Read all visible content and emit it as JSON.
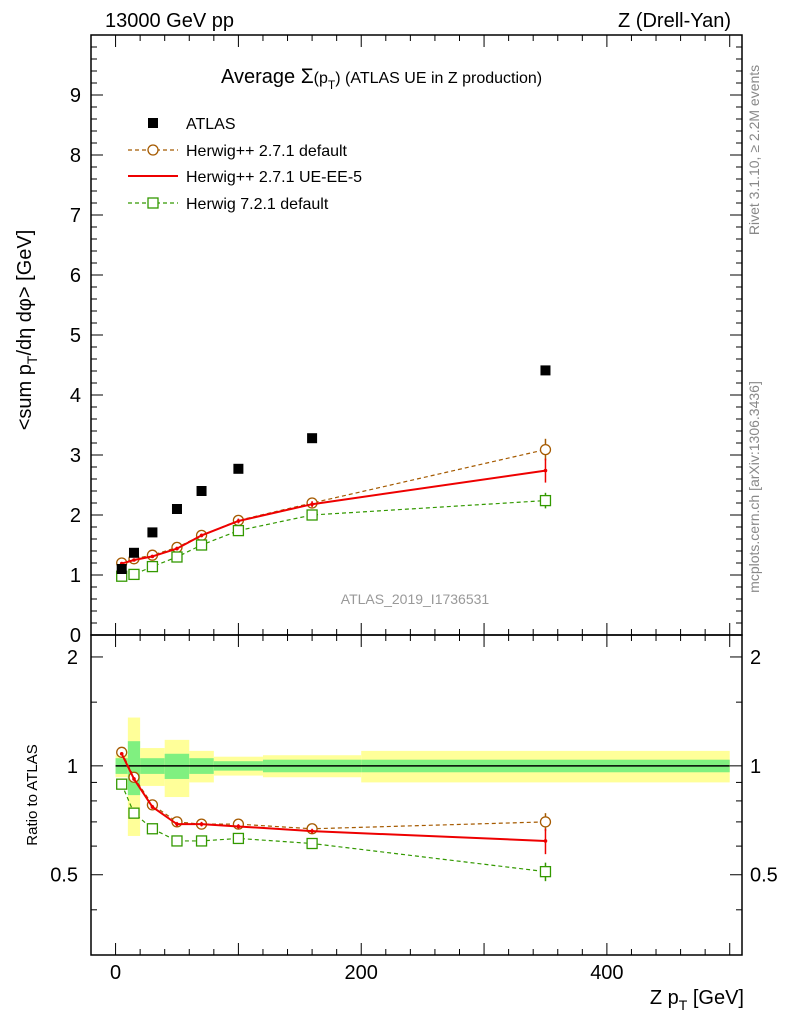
{
  "header": {
    "left": "13000 GeV pp",
    "right": "Z (Drell-Yan)"
  },
  "side_labels": {
    "rivet": "Rivet 3.1.10, ≥ 2.2M events",
    "mcplots": "mcplots.cern.ch [arXiv:1306.3436]"
  },
  "chart_data": [
    {
      "type": "scatter",
      "panel": "main",
      "title": "Average Σ(p_T) (ATLAS UE in Z production)",
      "watermark": "ATLAS_2019_I1736531",
      "xlabel": "Z p_T [GeV]",
      "ylabel": "<sum p_T/dη dφ> [GeV]",
      "xlim": [
        -20,
        510
      ],
      "ylim": [
        0,
        10
      ],
      "yticks": [
        0,
        1,
        2,
        3,
        4,
        5,
        6,
        7,
        8,
        9
      ],
      "legend_position": "top-left",
      "x": [
        5,
        15,
        30,
        50,
        70,
        100,
        160,
        350
      ],
      "series": [
        {
          "name": "ATLAS",
          "color": "#000000",
          "style": "filled-square",
          "values": [
            1.1,
            1.37,
            1.71,
            2.1,
            2.4,
            2.77,
            3.28,
            4.41
          ]
        },
        {
          "name": "Herwig++ 2.7.1 default",
          "color": "#a55a00",
          "style": "dashed-circle",
          "values": [
            1.2,
            1.27,
            1.33,
            1.46,
            1.66,
            1.91,
            2.2,
            3.09
          ],
          "errors": [
            0.02,
            0.02,
            0.02,
            0.03,
            0.03,
            0.04,
            0.05,
            0.18
          ]
        },
        {
          "name": "Herwig++ 2.7.1 UE-EE-5",
          "color": "#ee0000",
          "style": "solid-line",
          "values": [
            1.19,
            1.25,
            1.31,
            1.44,
            1.66,
            1.9,
            2.18,
            2.74
          ],
          "errors": [
            0.02,
            0.02,
            0.02,
            0.03,
            0.03,
            0.04,
            0.05,
            0.2
          ]
        },
        {
          "name": "Herwig 7.2.1 default",
          "color": "#339900",
          "style": "dashed-square",
          "values": [
            0.98,
            1.01,
            1.14,
            1.3,
            1.5,
            1.74,
            2.0,
            2.24
          ],
          "errors": [
            0.02,
            0.02,
            0.02,
            0.03,
            0.03,
            0.04,
            0.05,
            0.13
          ]
        }
      ]
    },
    {
      "type": "scatter",
      "panel": "ratio",
      "ylabel": "Ratio to ATLAS",
      "xlabel": "Z p_T [GeV]",
      "xlim": [
        -20,
        510
      ],
      "ylim": [
        0.3,
        2.3
      ],
      "xticks": [
        0,
        200,
        400
      ],
      "yticks": [
        0.5,
        1,
        2
      ],
      "bands": [
        {
          "x0": 0,
          "x1": 10,
          "stat": 0.05,
          "total": 0.07
        },
        {
          "x0": 10,
          "x1": 20,
          "stat": 0.17,
          "total": 0.36
        },
        {
          "x0": 20,
          "x1": 40,
          "stat": 0.05,
          "total": 0.12
        },
        {
          "x0": 40,
          "x1": 60,
          "stat": 0.08,
          "total": 0.18
        },
        {
          "x0": 60,
          "x1": 80,
          "stat": 0.05,
          "total": 0.1
        },
        {
          "x0": 80,
          "x1": 120,
          "stat": 0.03,
          "total": 0.06
        },
        {
          "x0": 120,
          "x1": 200,
          "stat": 0.04,
          "total": 0.07
        },
        {
          "x0": 200,
          "x1": 500,
          "stat": 0.04,
          "total": 0.1
        }
      ],
      "x": [
        5,
        15,
        30,
        50,
        70,
        100,
        160,
        350
      ],
      "series": [
        {
          "name": "Herwig++ 2.7.1 default",
          "color": "#a55a00",
          "style": "dashed-circle",
          "values": [
            1.09,
            0.93,
            0.78,
            0.7,
            0.69,
            0.69,
            0.67,
            0.7
          ],
          "errors": [
            0.01,
            0.01,
            0.01,
            0.01,
            0.01,
            0.01,
            0.01,
            0.04
          ]
        },
        {
          "name": "Herwig++ 2.7.1 UE-EE-5",
          "color": "#ee0000",
          "style": "solid-line",
          "values": [
            1.08,
            0.92,
            0.77,
            0.69,
            0.69,
            0.68,
            0.66,
            0.62
          ],
          "errors": [
            0.01,
            0.01,
            0.01,
            0.01,
            0.01,
            0.01,
            0.01,
            0.05
          ]
        },
        {
          "name": "Herwig 7.2.1 default",
          "color": "#339900",
          "style": "dashed-square",
          "values": [
            0.89,
            0.74,
            0.67,
            0.62,
            0.62,
            0.63,
            0.61,
            0.51
          ],
          "errors": [
            0.01,
            0.01,
            0.01,
            0.01,
            0.01,
            0.01,
            0.01,
            0.03
          ]
        }
      ]
    }
  ]
}
